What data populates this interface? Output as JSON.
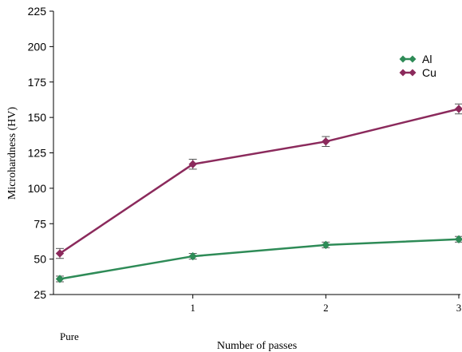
{
  "chart_data": {
    "type": "line",
    "categories": [
      "Pure",
      "1",
      "2",
      "3"
    ],
    "x": [
      0,
      1,
      2,
      3
    ],
    "xlabel": "Number of passes",
    "ylabel": "Microhardness (HV)",
    "ylim": [
      25,
      225
    ],
    "yticks": [
      25,
      50,
      75,
      100,
      125,
      150,
      175,
      200,
      225
    ],
    "grid": false,
    "legend_position": "top-right",
    "series": [
      {
        "name": "Al",
        "color": "#2e8b57",
        "marker": "diamond",
        "values": [
          36,
          52,
          60,
          64
        ],
        "error": [
          2,
          2,
          2,
          2
        ]
      },
      {
        "name": "Cu",
        "color": "#8b2a5c",
        "marker": "diamond",
        "values": [
          54,
          117,
          133,
          156
        ],
        "error": [
          3.5,
          3.5,
          3.5,
          3.5
        ]
      }
    ]
  }
}
